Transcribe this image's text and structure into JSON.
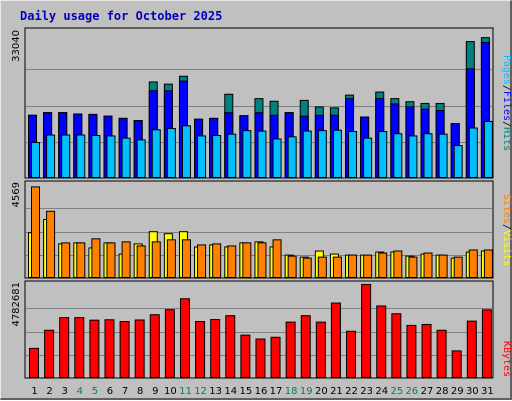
{
  "title": "Daily usage for October 2025",
  "colors": {
    "hits": "#008080",
    "files": "#0000ff",
    "pages": "#00c0ff",
    "visits": "#ffff00",
    "sites": "#ff8000",
    "kbytes": "#ff0000",
    "panel": "#c0c0c0",
    "weekend": "#00805c",
    "weekday": "#000000"
  },
  "chart_data": [
    {
      "type": "bar",
      "title": "Daily usage for October 2025",
      "ymax_label": "33040",
      "ylim": [
        0,
        33040
      ],
      "legend": [
        "Pages",
        "Files",
        "Hits"
      ],
      "right_label": {
        "pages": "Pages",
        "sep1": "/",
        "files": "Files",
        "sep2": "/",
        "hits": "Hits"
      },
      "series": [
        {
          "name": "Hits",
          "values": [
            14400,
            15000,
            15000,
            14700,
            14600,
            14200,
            13700,
            13200,
            22000,
            21500,
            23300,
            13500,
            13700,
            19200,
            14300,
            18200,
            17600,
            15000,
            17800,
            16300,
            16100,
            19000,
            14000,
            19700,
            18200,
            17500,
            17100,
            17100,
            12500,
            31200,
            32100
          ]
        },
        {
          "name": "Files",
          "values": [
            14400,
            15000,
            15000,
            14700,
            14600,
            14200,
            13700,
            13200,
            20000,
            20000,
            22200,
            13500,
            13700,
            15000,
            14300,
            15000,
            14400,
            15000,
            14200,
            14400,
            14400,
            18200,
            14000,
            18200,
            17000,
            16300,
            15800,
            15500,
            12500,
            25000,
            31000
          ]
        },
        {
          "name": "Pages",
          "values": [
            8200,
            9900,
            9900,
            9900,
            9800,
            9700,
            9200,
            8800,
            11100,
            11400,
            12000,
            9700,
            9800,
            10100,
            10900,
            10800,
            9000,
            9500,
            10800,
            10900,
            11000,
            10700,
            9200,
            10700,
            10200,
            9700,
            10200,
            10100,
            7500,
            11500,
            13000
          ]
        }
      ]
    },
    {
      "type": "bar",
      "ymax_label": "4569",
      "ylim": [
        0,
        4569
      ],
      "legend": [
        "Sites",
        "Visits"
      ],
      "right_label": {
        "sites": "Sites",
        "sep": "/",
        "visits": "Visits"
      },
      "series": [
        {
          "name": "Visits",
          "values": [
            2250,
            2900,
            1700,
            1750,
            1500,
            1750,
            1200,
            1700,
            2300,
            2200,
            2300,
            1550,
            1650,
            1550,
            1750,
            1800,
            1550,
            1150,
            1050,
            1350,
            1200,
            1150,
            1150,
            1300,
            1300,
            1100,
            1200,
            1150,
            1000,
            1300,
            1350
          ]
        },
        {
          "name": "Sites",
          "values": [
            4500,
            3300,
            1750,
            1750,
            1950,
            1750,
            1800,
            1600,
            1800,
            1900,
            1900,
            1650,
            1700,
            1600,
            1750,
            1750,
            1900,
            1100,
            1000,
            1050,
            1050,
            1150,
            1150,
            1250,
            1350,
            1050,
            1250,
            1150,
            1050,
            1400,
            1400
          ]
        }
      ]
    },
    {
      "type": "bar",
      "ymax_label": "4782681",
      "ylim": [
        0,
        4782681
      ],
      "legend": [
        "KBytes"
      ],
      "right_label": {
        "kbytes": "KBytes"
      },
      "series": [
        {
          "name": "KBytes",
          "values": [
            1550000,
            2480000,
            3130000,
            3130000,
            3000000,
            3020000,
            2930000,
            3010000,
            3280000,
            3540000,
            4100000,
            2930000,
            3030000,
            3230000,
            2230000,
            2030000,
            2120000,
            2900000,
            3230000,
            2900000,
            3880000,
            2430000,
            4840000,
            3730000,
            3330000,
            2730000,
            2780000,
            2480000,
            1420000,
            2950000,
            3530000
          ]
        }
      ]
    }
  ],
  "x_ticks": [
    "1",
    "2",
    "3",
    "4",
    "5",
    "6",
    "7",
    "8",
    "9",
    "10",
    "11",
    "12",
    "13",
    "14",
    "15",
    "16",
    "17",
    "18",
    "19",
    "20",
    "21",
    "22",
    "23",
    "24",
    "25",
    "26",
    "27",
    "28",
    "29",
    "30",
    "31"
  ],
  "weekend_days": [
    4,
    5,
    11,
    12,
    18,
    19,
    25,
    26
  ]
}
